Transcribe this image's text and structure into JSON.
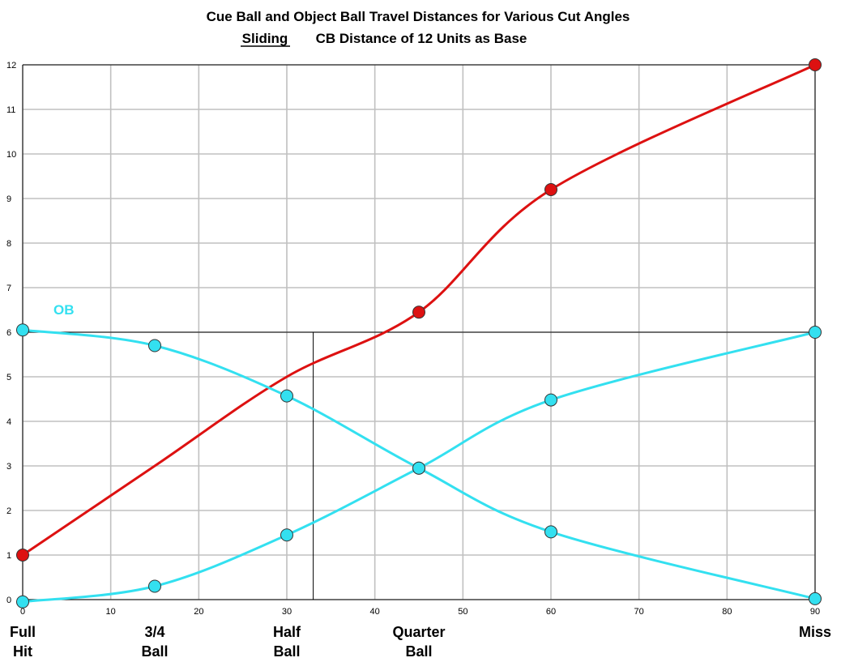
{
  "chart_data": {
    "type": "line",
    "title_line1": "Cue Ball and Object Ball Travel Distances for Various Cut Angles",
    "title_line2_underlined": "Sliding",
    "title_line2_rest": "CB Distance of 12 Units as Base",
    "xlim": [
      0,
      90
    ],
    "ylim": [
      0,
      12
    ],
    "grid": true,
    "x_ticks": [
      "0",
      "10",
      "20",
      "30",
      "40",
      "50",
      "60",
      "70",
      "80",
      "90"
    ],
    "y_ticks": [
      "0",
      "1",
      "2",
      "3",
      "4",
      "5",
      "6",
      "7",
      "8",
      "9",
      "10",
      "11",
      "12"
    ],
    "category_labels": [
      {
        "x": 0,
        "lines": [
          "Full",
          "Hit"
        ]
      },
      {
        "x": 15,
        "lines": [
          "3/4",
          "Ball"
        ]
      },
      {
        "x": 30,
        "lines": [
          "Half",
          "Ball"
        ]
      },
      {
        "x": 45,
        "lines": [
          "Quarter",
          "Ball"
        ]
      },
      {
        "x": 90,
        "lines": [
          "Miss"
        ]
      }
    ],
    "annotations": [
      {
        "text": "OB",
        "x": 3.5,
        "y": 6.4
      }
    ],
    "reference_lines": {
      "horizontal_y": 6,
      "vertical_x": 33
    },
    "series": [
      {
        "color": "#dd1111",
        "x": [
          0,
          15,
          30,
          45,
          60,
          90
        ],
        "y": [
          1.0,
          3.0,
          5.0,
          6.45,
          9.2,
          12.0
        ],
        "marker_x": [
          0,
          45,
          60,
          90
        ],
        "marker_y": [
          1.0,
          6.45,
          9.2,
          12.0
        ]
      },
      {
        "color": "#33e0f0",
        "x": [
          0,
          15,
          30,
          45,
          60,
          90
        ],
        "y": [
          6.05,
          5.7,
          4.57,
          2.95,
          1.52,
          0.02
        ]
      },
      {
        "color": "#33e0f0",
        "x": [
          0,
          15,
          30,
          45,
          60,
          90
        ],
        "y": [
          -0.05,
          0.3,
          1.45,
          2.95,
          4.48,
          6.0
        ]
      }
    ]
  }
}
